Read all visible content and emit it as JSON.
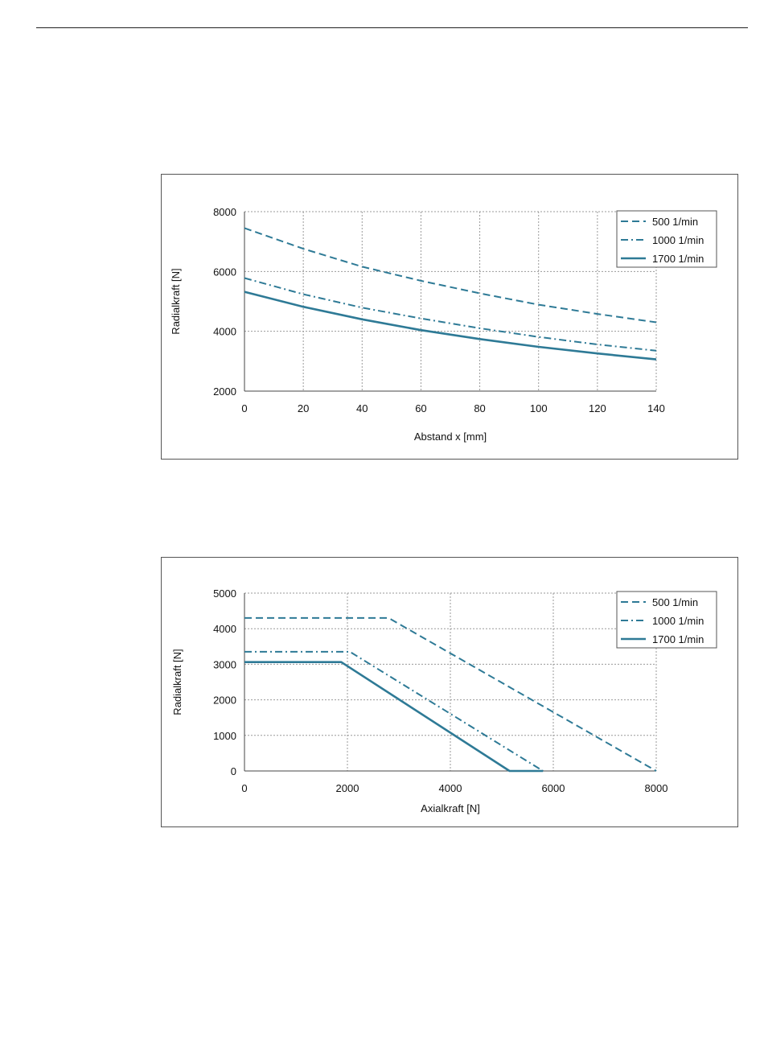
{
  "colors": {
    "series": "#2e7a96",
    "grid": "#9a9a9a",
    "frame": "#555555"
  },
  "chart_data": [
    {
      "type": "line",
      "xlabel": "Abstand x [mm]",
      "ylabel": "Radialkraft [N]",
      "xlim": [
        0,
        140
      ],
      "ylim": [
        2000,
        8000
      ],
      "xticks": [
        0,
        20,
        40,
        60,
        80,
        100,
        120,
        140
      ],
      "yticks": [
        2000,
        4000,
        6000,
        8000
      ],
      "grid": true,
      "legend_position": "top-right",
      "series": [
        {
          "name": "500  1/min",
          "style": "dashed",
          "x": [
            0,
            20,
            40,
            60,
            80,
            100,
            120,
            140
          ],
          "y": [
            7450,
            6760,
            6160,
            5690,
            5270,
            4890,
            4580,
            4300
          ]
        },
        {
          "name": "1000 1/min",
          "style": "dashdot",
          "x": [
            0,
            20,
            40,
            60,
            80,
            100,
            120,
            140
          ],
          "y": [
            5780,
            5240,
            4790,
            4430,
            4100,
            3810,
            3560,
            3350
          ]
        },
        {
          "name": "1700 1/min",
          "style": "solid",
          "x": [
            0,
            20,
            40,
            60,
            80,
            100,
            120,
            140
          ],
          "y": [
            5320,
            4820,
            4400,
            4040,
            3740,
            3480,
            3260,
            3060
          ]
        }
      ]
    },
    {
      "type": "line",
      "xlabel": "Axialkraft [N]",
      "ylabel": "Radialkraft [N]",
      "xlim": [
        0,
        8000
      ],
      "ylim": [
        0,
        5000
      ],
      "xticks": [
        0,
        2000,
        4000,
        6000,
        8000
      ],
      "yticks": [
        0,
        1000,
        2000,
        3000,
        4000,
        5000
      ],
      "grid": true,
      "legend_position": "top-right",
      "series": [
        {
          "name": "500  1/min",
          "style": "dashed",
          "x": [
            0,
            2800,
            8000
          ],
          "y": [
            4300,
            4300,
            0
          ]
        },
        {
          "name": "1000 1/min",
          "style": "dashdot",
          "x": [
            0,
            2050,
            5800
          ],
          "y": [
            3350,
            3350,
            0
          ]
        },
        {
          "name": "1700 1/min",
          "style": "solid",
          "x": [
            0,
            1880,
            5150,
            5800
          ],
          "y": [
            3060,
            3060,
            0,
            0
          ]
        }
      ]
    }
  ]
}
